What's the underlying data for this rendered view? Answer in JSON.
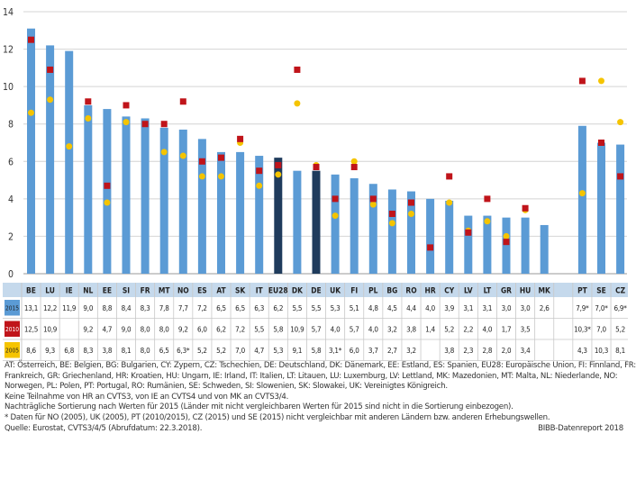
{
  "chart_data": {
    "type": "bar",
    "title": "",
    "xlabel": "",
    "ylabel": "",
    "ylim": [
      0,
      14
    ],
    "yticks": [
      "0",
      "2",
      "4",
      "6",
      "8",
      "10",
      "12",
      "14"
    ],
    "categories": [
      "BE",
      "LU",
      "IE",
      "NL",
      "EE",
      "SI",
      "FR",
      "MT",
      "NO",
      "ES",
      "AT",
      "SK",
      "IT",
      "EU28",
      "DK",
      "DE",
      "UK",
      "FI",
      "PL",
      "BG",
      "RO",
      "HR",
      "CY",
      "LV",
      "LT",
      "GR",
      "HU",
      "MK",
      "",
      "PT",
      "SE",
      "CZ"
    ],
    "highlight": [
      "EU28",
      "DE"
    ],
    "series": [
      {
        "name": "2015",
        "color": "#5b9bd5",
        "highlight_color": "#1f3b5c",
        "values": [
          13.1,
          12.2,
          11.9,
          9.0,
          8.8,
          8.4,
          8.3,
          7.8,
          7.7,
          7.2,
          6.5,
          6.5,
          6.3,
          6.2,
          5.5,
          5.5,
          5.3,
          5.1,
          4.8,
          4.5,
          4.4,
          4.0,
          3.9,
          3.1,
          3.1,
          3.0,
          3.0,
          2.6,
          null,
          7.9,
          7.0,
          6.9
        ],
        "labels": [
          "13,1",
          "12,2",
          "11,9",
          "9,0",
          "8,8",
          "8,4",
          "8,3",
          "7,8",
          "7,7",
          "7,2",
          "6,5",
          "6,5",
          "6,3",
          "6,2",
          "5,5",
          "5,5",
          "5,3",
          "5,1",
          "4,8",
          "4,5",
          "4,4",
          "4,0",
          "3,9",
          "3,1",
          "3,1",
          "3,0",
          "3,0",
          "2,6",
          "",
          "7,9*",
          "7,0*",
          "6,9*"
        ]
      },
      {
        "name": "2010",
        "color": "#c0141a",
        "values": [
          12.5,
          10.9,
          null,
          9.2,
          4.7,
          9.0,
          8.0,
          8.0,
          9.2,
          6.0,
          6.2,
          7.2,
          5.5,
          5.8,
          10.9,
          5.7,
          4.0,
          5.7,
          4.0,
          3.2,
          3.8,
          1.4,
          5.2,
          2.2,
          4.0,
          1.7,
          3.5,
          null,
          null,
          10.3,
          7.0,
          5.2
        ],
        "labels": [
          "12,5",
          "10,9",
          "",
          "9,2",
          "4,7",
          "9,0",
          "8,0",
          "8,0",
          "9,2",
          "6,0",
          "6,2",
          "7,2",
          "5,5",
          "5,8",
          "10,9",
          "5,7",
          "4,0",
          "5,7",
          "4,0",
          "3,2",
          "3,8",
          "1,4",
          "5,2",
          "2,2",
          "4,0",
          "1,7",
          "3,5",
          "",
          "",
          "10,3*",
          "7,0",
          "5,2"
        ]
      },
      {
        "name": "2005",
        "color": "#f5c400",
        "values": [
          8.6,
          9.3,
          6.8,
          8.3,
          3.8,
          8.1,
          8.0,
          6.5,
          6.3,
          5.2,
          5.2,
          7.0,
          4.7,
          5.3,
          9.1,
          5.8,
          3.1,
          6.0,
          3.7,
          2.7,
          3.2,
          null,
          3.8,
          2.3,
          2.8,
          2.0,
          3.4,
          null,
          null,
          4.3,
          10.3,
          8.1
        ],
        "labels": [
          "8,6",
          "9,3",
          "6,8",
          "8,3",
          "3,8",
          "8,1",
          "8,0",
          "6,5",
          "6,3*",
          "5,2",
          "5,2",
          "7,0",
          "4,7",
          "5,3",
          "9,1",
          "5,8",
          "3,1*",
          "6,0",
          "3,7",
          "2,7",
          "3,2",
          "",
          "3,8",
          "2,3",
          "2,8",
          "2,0",
          "3,4",
          "",
          "",
          "4,3",
          "10,3",
          "8,1"
        ]
      }
    ]
  },
  "notes": [
    "AT: Österreich, BE: Belgien, BG: Bulgarien, CY: Zypern, CZ: Tschechien, DE: Deutschland, DK: Dänemark, EE: Estland, ES: Spanien, EU28: Europäische Union, FI: Finnland, FR:",
    "Frankreich, GR: Griechenland, HR: Kroatien, HU: Ungarn, IE: Irland, IT: Italien, LT: Litauen, LU: Luxemburg, LV: Lettland, MK: Mazedonien, MT: Malta, NL: Niederlande, NO:",
    "Norwegen, PL: Polen, PT: Portugal, RO: Rumänien, SE: Schweden, SI: Slowenien, SK: Slowakei, UK: Vereinigtes Königreich.",
    "Keine Teilnahme von HR an CVTS3, von IE an CVTS4 und von MK an CVTS3/4.",
    "Nachträgliche Sortierung nach Werten für 2015 (Länder mit nicht vergleichbaren Werten für 2015 sind nicht in die Sortierung einbezogen).",
    "* Daten für NO (2005), UK (2005), PT (2010/2015), CZ (2015) und SE (2015) nicht vergleichbar mit anderen Ländern bzw. anderen Erhebungswellen."
  ],
  "source": "Quelle: Eurostat, CVTS3/4/5 (Abrufdatum: 22.3.2018).",
  "credit": "BIBB-Datenreport 2018"
}
